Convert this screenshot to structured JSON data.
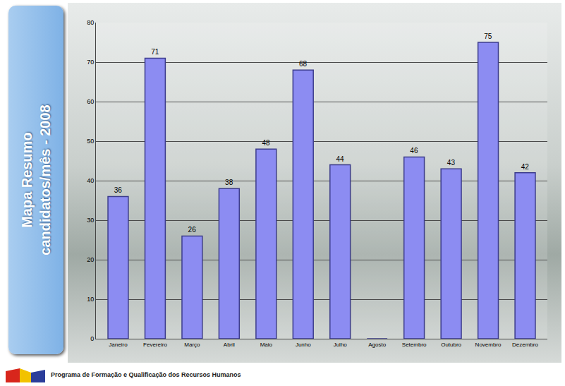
{
  "chart_data": {
    "type": "bar",
    "title": "Mapa Resumo candidatos/mês - 2008",
    "annotations": [
      "Programa de Formação e Qualificação dos Recursos Humanos"
    ],
    "categories": [
      "Janeiro",
      "Fevereiro",
      "Março",
      "Abril",
      "Maio",
      "Junho",
      "Julho",
      "Agosto",
      "Setembro",
      "Outubro",
      "Novembro",
      "Dezembro"
    ],
    "values": [
      36,
      71,
      26,
      38,
      48,
      68,
      44,
      0,
      46,
      43,
      75,
      42
    ],
    "value_labels": [
      "36",
      "71",
      "26",
      "38",
      "48",
      "68",
      "44",
      null,
      "46",
      "43",
      "75",
      "42"
    ],
    "color": "#8c8cf2",
    "ylim": [
      0,
      80
    ],
    "yticks": [
      0,
      10,
      20,
      30,
      40,
      50,
      60,
      70,
      80
    ],
    "grid": true,
    "data_labels": true
  }
}
